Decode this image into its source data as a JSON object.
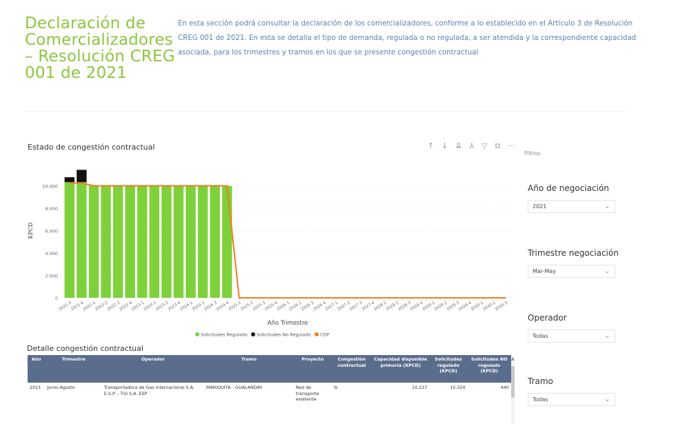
{
  "header": {
    "title": "Declaración de Comercializadores – Resolución CREG 001 de 2021",
    "intro": "En esta sección podrá consultar la declaración de los comercializadores, conforme a lo establecido en el Artículo 3 de Resolución CREG 001 de 2021. En esta se detalla el tipo de demanda, regulada o no regulada, a ser atendida y la correspondiente capacidad asociada, para los trimestres y tramos en los que se presente congestión contractual"
  },
  "toolbar": {
    "icons": [
      {
        "name": "arrow-up-icon",
        "glyph": "↑"
      },
      {
        "name": "arrow-down-icon",
        "glyph": "↓"
      },
      {
        "name": "double-arrow-down-icon",
        "glyph": "⇊"
      },
      {
        "name": "expand-hierarchy-icon",
        "glyph": "⅄"
      },
      {
        "name": "filter-icon",
        "glyph": "▽"
      },
      {
        "name": "focus-mode-icon",
        "glyph": "⧉"
      },
      {
        "name": "more-options-icon",
        "glyph": "···"
      }
    ]
  },
  "chart_data": {
    "type": "bar",
    "title": "Estado de congestión contractual",
    "xlabel": "Año Trimestre",
    "ylabel": "KPCD",
    "ylim": [
      0,
      12000
    ],
    "yticks": [
      "0",
      "2.000",
      "4.000",
      "6.000",
      "8.000",
      "10.000"
    ],
    "grid": true,
    "legend_position": "bottom",
    "categories": [
      "2021 3",
      "2021 4",
      "2022 1",
      "2022 2",
      "2022 3",
      "2022 4",
      "2023 1",
      "2023 2",
      "2023 3",
      "2023 4",
      "2024 1",
      "2024 2",
      "2024 3",
      "2024 4",
      "2025 1",
      "2025 2",
      "2025 3",
      "2025 4",
      "2026 1",
      "2026 2",
      "2026 3",
      "2026 4",
      "2027 1",
      "2027 2",
      "2027 3",
      "2027 4",
      "2028 1",
      "2028 2",
      "2028 3",
      "2028 4",
      "2029 1",
      "2029 2",
      "2029 3",
      "2029 4",
      "2030 1",
      "2030 2",
      "2030 3"
    ],
    "series": [
      {
        "name": "Solicitudes Regulado",
        "kind": "bar",
        "color": "#7fd13b",
        "values": [
          10324,
          10324,
          10000,
          10000,
          10000,
          10000,
          10000,
          10000,
          10000,
          10000,
          10000,
          10000,
          10000,
          10000,
          0,
          0,
          0,
          0,
          0,
          0,
          0,
          0,
          0,
          0,
          0,
          0,
          0,
          0,
          0,
          0,
          0,
          0,
          0,
          0,
          0,
          0,
          0
        ]
      },
      {
        "name": "Solicitudes No Regulado",
        "kind": "bar",
        "color": "#111111",
        "values": [
          440,
          1100,
          0,
          0,
          0,
          0,
          0,
          0,
          0,
          0,
          0,
          0,
          0,
          0,
          0,
          0,
          0,
          0,
          0,
          0,
          0,
          0,
          0,
          0,
          0,
          0,
          0,
          0,
          0,
          0,
          0,
          0,
          0,
          0,
          0,
          0,
          0
        ]
      },
      {
        "name": "CDP",
        "kind": "line",
        "color": "#f07c1f",
        "values": [
          10237,
          10237,
          10000,
          10000,
          10000,
          10000,
          10000,
          10000,
          10000,
          10000,
          10000,
          10000,
          10000,
          10000,
          0,
          0,
          0,
          0,
          0,
          0,
          0,
          0,
          0,
          0,
          0,
          0,
          0,
          0,
          0,
          0,
          0,
          0,
          0,
          0,
          0,
          0,
          0
        ]
      }
    ]
  },
  "table": {
    "title": "Detalle congestión contractual",
    "columns": [
      "Año",
      "Trimestre",
      "Operador",
      "Tramo",
      "Proyecto",
      "Congestión contractual",
      "Capacidad disponible primaria (KPCD)",
      "Solicitudes regulado (KPCD)",
      "Solicitudes NO regulado (KPCD)"
    ],
    "rows": [
      [
        "2021",
        "Junio-Agosto",
        "Transportadora de Gas Internacional S.A. E.S.P. - TGI S.A. ESP",
        "MARIQUITA - GUALANDAY",
        "Red de transporte existente",
        "Si",
        "10.237",
        "10.324",
        "440"
      ]
    ]
  },
  "filters": {
    "panel_label": "Filtros",
    "items": [
      {
        "title": "Año de negociación",
        "value": "2021"
      },
      {
        "title": "Trimestre negociación",
        "value": "Mar-May"
      },
      {
        "title": "Operador",
        "value": "Todas"
      },
      {
        "title": "Tramo",
        "value": "Todas"
      }
    ]
  }
}
